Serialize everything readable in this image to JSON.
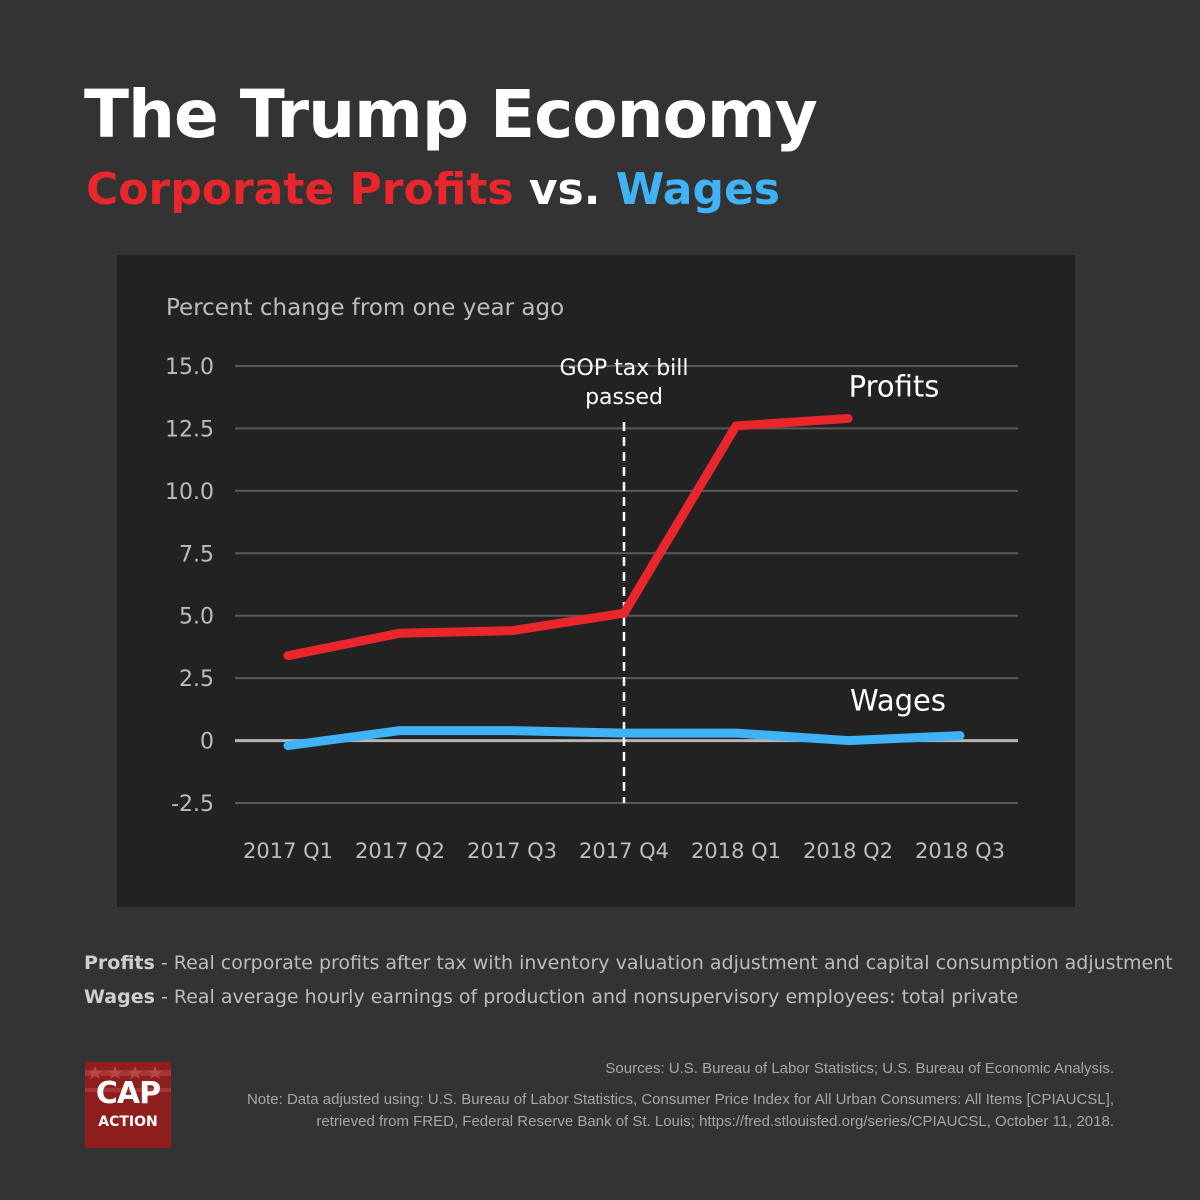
{
  "header": {
    "title": "The Trump Economy",
    "subtitle_profits": "Corporate Profits",
    "subtitle_vs": "vs.",
    "subtitle_wages": "Wages"
  },
  "colors": {
    "profits": "#e8262c",
    "wages": "#3fb3f5",
    "background": "#333333",
    "panel": "#222222"
  },
  "chart_data": {
    "type": "line",
    "title": "",
    "ylabel": "Percent change from one year ago",
    "xlabel": "",
    "categories": [
      "2017 Q1",
      "2017 Q2",
      "2017 Q3",
      "2017 Q4",
      "2018 Q1",
      "2018 Q2",
      "2018 Q3"
    ],
    "ylim": [
      -2.5,
      15.0
    ],
    "yticks": [
      "15.0",
      "12.5",
      "10.0",
      "7.5",
      "5.0",
      "2.5",
      "0",
      "-2.5"
    ],
    "ytick_values": [
      15.0,
      12.5,
      10.0,
      7.5,
      5.0,
      2.5,
      0,
      -2.5
    ],
    "grid": true,
    "series": [
      {
        "name": "Profits",
        "color": "#e8262c",
        "values": [
          3.4,
          4.3,
          4.4,
          5.1,
          12.6,
          12.9,
          null
        ]
      },
      {
        "name": "Wages",
        "color": "#3fb3f5",
        "values": [
          -0.2,
          0.4,
          0.4,
          0.3,
          0.3,
          0.0,
          0.2
        ]
      }
    ],
    "annotations": [
      {
        "text_line1": "GOP tax bill",
        "text_line2": "passed",
        "at_category": "2017 Q4",
        "style": "dashed-vertical-line"
      }
    ]
  },
  "notes": [
    {
      "term": "Profits",
      "text": " - Real corporate profits after tax with inventory valuation adjustment and capital consumption adjustment"
    },
    {
      "term": "Wages",
      "text": " - Real average hourly earnings of production and nonsupervisory employees: total private"
    }
  ],
  "sources": {
    "line1": "Sources: U.S. Bureau of Labor Statistics; U.S. Bureau of Economic Analysis.",
    "line2": "Note: Data adjusted using: U.S. Bureau of Labor Statistics, Consumer Price Index for All Urban Consumers: All Items [CPIAUCSL],",
    "line3": "retrieved from FRED, Federal Reserve Bank of St. Louis; https://fred.stlouisfed.org/series/CPIAUCSL, October 11, 2018."
  },
  "logo": {
    "top": "CAP",
    "bottom": "ACTION"
  }
}
